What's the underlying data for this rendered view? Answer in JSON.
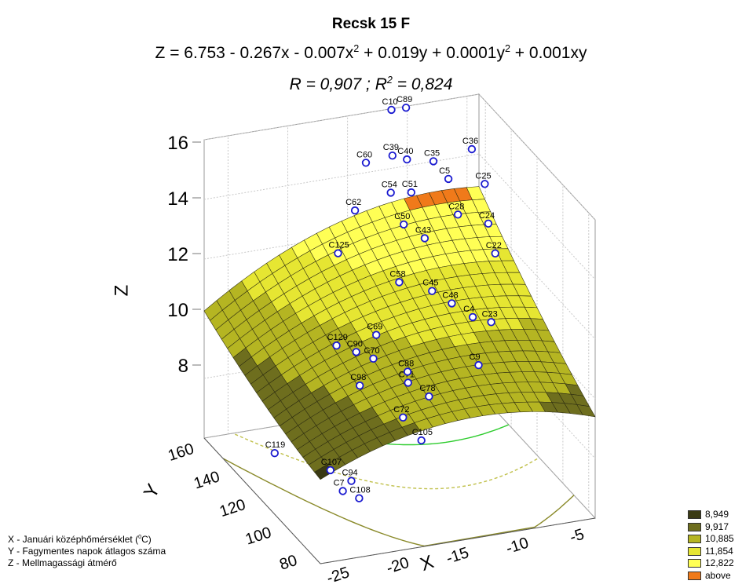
{
  "chart_data": {
    "type": "surface3d",
    "title": "Recsk 15 F",
    "equation": {
      "prefix": "Z = 6.753 - 0.267x - 0.007x",
      "exp1": "2",
      "mid": " + 0.019y + 0.0001y",
      "exp2": "2",
      "suffix": " + 0.001xy"
    },
    "stats": {
      "r": "R = 0,907 ; R",
      "r2_exp": "2",
      "r2_val": " = 0,824"
    },
    "xlabel": "X",
    "ylabel": "Y",
    "zlabel": "Z",
    "x_ticks": [
      "-25",
      "-20",
      "-15",
      "-10",
      "-5"
    ],
    "y_ticks": [
      "80",
      "100",
      "120",
      "140",
      "160"
    ],
    "z_ticks": [
      "8",
      "10",
      "12",
      "14",
      "16"
    ],
    "xlim": [
      -27,
      -4
    ],
    "ylim": [
      75,
      165
    ],
    "zlim": [
      7,
      16
    ],
    "legend": [
      {
        "label": "8,949",
        "color": "#3a3a14"
      },
      {
        "label": "9,917",
        "color": "#6e6e1e"
      },
      {
        "label": "10,885",
        "color": "#b5b522"
      },
      {
        "label": "11,854",
        "color": "#e6e632"
      },
      {
        "label": "12,822",
        "color": "#ffff55"
      },
      {
        "label": "above",
        "color": "#f07a1a"
      }
    ],
    "points": [
      {
        "label": "C119",
        "x": -26.5,
        "y": 115,
        "z": 7.8
      },
      {
        "label": "C107",
        "x": -24,
        "y": 95,
        "z": 8.0
      },
      {
        "label": "C94",
        "x": -23,
        "y": 88,
        "z": 7.9
      },
      {
        "label": "C7",
        "x": -23.5,
        "y": 90,
        "z": 7.5
      },
      {
        "label": "C108",
        "x": -23,
        "y": 82,
        "z": 7.6
      },
      {
        "label": "C72",
        "x": -19,
        "y": 85,
        "z": 9.9
      },
      {
        "label": "C105",
        "x": -18,
        "y": 80,
        "z": 9.3
      },
      {
        "label": "C98",
        "x": -21,
        "y": 100,
        "z": 10.4
      },
      {
        "label": "C9",
        "x": -13,
        "y": 82,
        "z": 11.4
      },
      {
        "label": "C71",
        "x": -17.5,
        "y": 95,
        "z": 10.5
      },
      {
        "label": "C78",
        "x": -16.5,
        "y": 88,
        "z": 10.3
      },
      {
        "label": "C88",
        "x": -17,
        "y": 100,
        "z": 10.6
      },
      {
        "label": "C129",
        "x": -21,
        "y": 118,
        "z": 10.9
      },
      {
        "label": "C69",
        "x": -18,
        "y": 115,
        "z": 11.2
      },
      {
        "label": "C90",
        "x": -20,
        "y": 112,
        "z": 10.9
      },
      {
        "label": "C70",
        "x": -19,
        "y": 108,
        "z": 10.8
      },
      {
        "label": "C125",
        "x": -18.5,
        "y": 140,
        "z": 12.8
      },
      {
        "label": "C58",
        "x": -15,
        "y": 125,
        "z": 12.3
      },
      {
        "label": "C45",
        "x": -13,
        "y": 118,
        "z": 12.2
      },
      {
        "label": "C48",
        "x": -12,
        "y": 112,
        "z": 12.0
      },
      {
        "label": "C4",
        "x": -11,
        "y": 105,
        "z": 11.8
      },
      {
        "label": "C23",
        "x": -10,
        "y": 100,
        "z": 11.8
      },
      {
        "label": "C50",
        "x": -13,
        "y": 140,
        "z": 13.4
      },
      {
        "label": "C43",
        "x": -12,
        "y": 133,
        "z": 13.2
      },
      {
        "label": "C62",
        "x": -16,
        "y": 150,
        "z": 13.6
      },
      {
        "label": "C54",
        "x": -13,
        "y": 150,
        "z": 14.0
      },
      {
        "label": "C51",
        "x": -11.5,
        "y": 148,
        "z": 14.0
      },
      {
        "label": "C28",
        "x": -9,
        "y": 135,
        "z": 13.7
      },
      {
        "label": "C24",
        "x": -7,
        "y": 130,
        "z": 13.5
      },
      {
        "label": "C22",
        "x": -7.5,
        "y": 120,
        "z": 13.0
      },
      {
        "label": "C60",
        "x": -14,
        "y": 160,
        "z": 14.6
      },
      {
        "label": "C39",
        "x": -12,
        "y": 158,
        "z": 14.8
      },
      {
        "label": "C40",
        "x": -11,
        "y": 156,
        "z": 14.7
      },
      {
        "label": "C35",
        "x": -9,
        "y": 154,
        "z": 14.6
      },
      {
        "label": "C36",
        "x": -6,
        "y": 152,
        "z": 14.9
      },
      {
        "label": "C25",
        "x": -6,
        "y": 142,
        "z": 14.2
      },
      {
        "label": "C5",
        "x": -8.5,
        "y": 147,
        "z": 14.3
      },
      {
        "label": "C10",
        "x": -11,
        "y": 168,
        "z": 15.8
      },
      {
        "label": "C89",
        "x": -10,
        "y": 166,
        "z": 15.9
      }
    ]
  },
  "notes": {
    "x_line_a": "X - Januári középhőmérséklet (",
    "x_line_sup": "0",
    "x_line_b": "C)",
    "y_line": "Y - Fagymentes napok átlagos száma",
    "z_line": "Z - Mellmagassági átmérő"
  }
}
